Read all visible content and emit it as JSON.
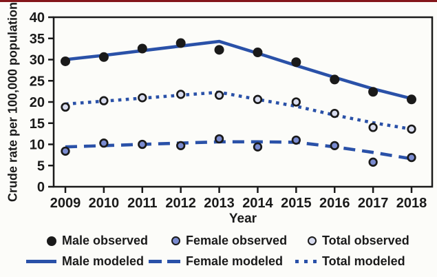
{
  "figure": {
    "background": "#fcfcf9",
    "top_rule_color": "#84161a",
    "axis_color": "#1a1a1a",
    "text_color": "#1a1a1a"
  },
  "chart_data": {
    "type": "line",
    "title": "",
    "xlabel": "Year",
    "ylabel": "Crude rate per 100,000 population",
    "ylim": [
      0,
      40
    ],
    "ytick_step": 5,
    "grid": false,
    "legend_position": "bottom",
    "line_color": "#2a51a8",
    "categories": [
      "2009",
      "2010",
      "2011",
      "2012",
      "2013",
      "2014",
      "2015",
      "2016",
      "2017",
      "2018"
    ],
    "series": [
      {
        "name": "Male observed",
        "style": "marker",
        "marker_fill": "#1a1a1a",
        "marker_stroke": "#1a1a1a",
        "values": [
          29.6,
          30.6,
          32.6,
          33.9,
          32.3,
          31.7,
          29.4,
          25.3,
          22.4,
          20.6
        ]
      },
      {
        "name": "Female observed",
        "style": "marker",
        "marker_fill": "#7a8bd0",
        "marker_stroke": "#1a1a1a",
        "values": [
          8.4,
          10.3,
          10.0,
          9.7,
          11.3,
          9.4,
          11.0,
          9.7,
          5.8,
          6.9
        ]
      },
      {
        "name": "Total observed",
        "style": "marker",
        "marker_fill": "#d8dcef",
        "marker_stroke": "#1a1a1a",
        "values": [
          18.8,
          20.3,
          21.0,
          21.8,
          21.6,
          20.6,
          20.0,
          17.3,
          14.0,
          13.6
        ]
      },
      {
        "name": "Male modeled",
        "style": "line",
        "dash": "solid",
        "values": [
          30.0,
          31.0,
          32.1,
          33.2,
          34.3,
          31.5,
          28.6,
          25.8,
          23.1,
          20.8
        ]
      },
      {
        "name": "Female modeled",
        "style": "line",
        "dash": "dashed",
        "values": [
          9.4,
          9.7,
          10.0,
          10.3,
          10.6,
          10.6,
          10.5,
          9.4,
          8.1,
          6.6
        ]
      },
      {
        "name": "Total modeled",
        "style": "line",
        "dash": "dotted",
        "values": [
          19.5,
          20.2,
          20.9,
          21.6,
          22.3,
          20.6,
          19.0,
          16.9,
          15.1,
          13.6
        ]
      }
    ]
  }
}
